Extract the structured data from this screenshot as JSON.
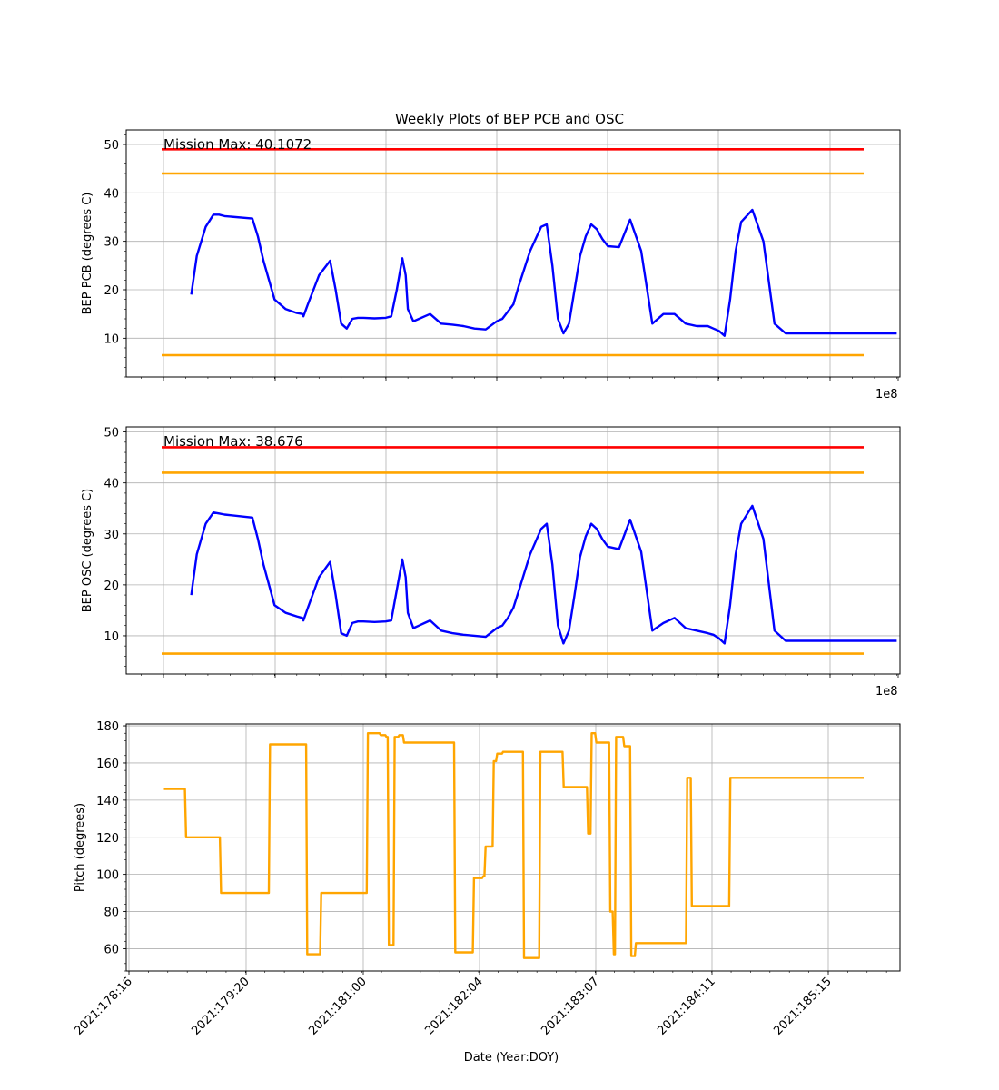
{
  "figure": {
    "title": "Weekly Plots of BEP PCB and OSC",
    "xlabel": "Date (Year:DOY)",
    "pcb_offset_label": "1e8",
    "osc_offset_label": "1e8"
  },
  "chart_data": [
    {
      "type": "line",
      "ylabel": "BEP PCB (degrees C)",
      "ylim": [
        2,
        53
      ],
      "yticks": [
        "10",
        "20",
        "30",
        "40",
        "50"
      ],
      "xlim": [
        0,
        6.95
      ],
      "grid": true,
      "annotation": "Mission Max: 40.1072",
      "limits": [
        {
          "value": 49,
          "color": "#ff0000",
          "name": "red upper limit"
        },
        {
          "value": 44,
          "color": "#ffa500",
          "name": "yellow upper limit"
        },
        {
          "value": 6.5,
          "color": "#ffa500",
          "name": "yellow lower limit"
        }
      ],
      "series": [
        {
          "color": "#0000ff",
          "x": [
            0.25,
            0.3,
            0.38,
            0.45,
            0.5,
            0.55,
            0.8,
            0.85,
            0.9,
            1.0,
            1.1,
            1.2,
            1.25,
            1.26,
            1.3,
            1.4,
            1.5,
            1.55,
            1.6,
            1.65,
            1.7,
            1.75,
            1.8,
            1.9,
            2.0,
            2.05,
            2.1,
            2.15,
            2.18,
            2.2,
            2.25,
            2.3,
            2.35,
            2.4,
            2.5,
            2.6,
            2.7,
            2.8,
            2.9,
            3.0,
            3.05,
            3.1,
            3.15,
            3.2,
            3.3,
            3.4,
            3.45,
            3.5,
            3.55,
            3.6,
            3.65,
            3.7,
            3.75,
            3.8,
            3.85,
            3.9,
            3.95,
            4.0,
            4.1,
            4.2,
            4.3,
            4.4,
            4.5,
            4.6,
            4.7,
            4.8,
            4.9,
            4.95,
            5.0,
            5.05,
            5.1,
            5.15,
            5.2,
            5.3,
            5.4,
            5.5,
            5.6,
            5.7,
            5.75,
            5.8,
            5.9,
            6.0,
            6.1,
            6.2,
            6.25,
            6.3,
            6.35,
            6.4,
            6.45,
            6.5,
            6.55,
            6.6
          ],
          "y": [
            19,
            27,
            33,
            35.5,
            35.5,
            35.2,
            34.7,
            31,
            26,
            18,
            16,
            15.2,
            15,
            14.5,
            17,
            23,
            26,
            20,
            13,
            12,
            14,
            14.2,
            14.2,
            14.1,
            14.2,
            14.5,
            20,
            26.5,
            23,
            16,
            13.5,
            14,
            14.5,
            15,
            13,
            12.8,
            12.5,
            12,
            11.8,
            13.5,
            14,
            15.5,
            17,
            21,
            28,
            33,
            33.5,
            25,
            14,
            11,
            13,
            20,
            27,
            31,
            33.5,
            32.5,
            30.5,
            29,
            28.8,
            34.5,
            28,
            13,
            15,
            15,
            13,
            12.5,
            12.5,
            12,
            11.5,
            10.5,
            18,
            28,
            34,
            36.5,
            30,
            13,
            11,
            11,
            11,
            11,
            11,
            11,
            11,
            11,
            11,
            11,
            11,
            11,
            11,
            11,
            11,
            11
          ]
        }
      ]
    },
    {
      "type": "line",
      "ylabel": "BEP OSC (degrees C)",
      "ylim": [
        2.5,
        51
      ],
      "yticks": [
        "10",
        "20",
        "30",
        "40",
        "50"
      ],
      "xlim": [
        0,
        6.95
      ],
      "grid": true,
      "annotation": "Mission Max: 38.676",
      "limits": [
        {
          "value": 47,
          "color": "#ff0000",
          "name": "red upper limit"
        },
        {
          "value": 42,
          "color": "#ffa500",
          "name": "yellow upper limit"
        },
        {
          "value": 6.5,
          "color": "#ffa500",
          "name": "yellow lower limit"
        }
      ],
      "series": [
        {
          "color": "#0000ff",
          "x": [
            0.25,
            0.3,
            0.38,
            0.45,
            0.5,
            0.55,
            0.8,
            0.85,
            0.9,
            1.0,
            1.1,
            1.2,
            1.25,
            1.26,
            1.3,
            1.4,
            1.5,
            1.55,
            1.6,
            1.65,
            1.7,
            1.75,
            1.8,
            1.9,
            2.0,
            2.05,
            2.1,
            2.15,
            2.18,
            2.2,
            2.25,
            2.3,
            2.35,
            2.4,
            2.5,
            2.6,
            2.7,
            2.8,
            2.9,
            3.0,
            3.05,
            3.1,
            3.15,
            3.2,
            3.3,
            3.4,
            3.45,
            3.5,
            3.55,
            3.6,
            3.65,
            3.7,
            3.75,
            3.8,
            3.85,
            3.9,
            3.95,
            4.0,
            4.1,
            4.2,
            4.3,
            4.4,
            4.5,
            4.6,
            4.7,
            4.8,
            4.9,
            4.95,
            5.0,
            5.05,
            5.1,
            5.15,
            5.2,
            5.3,
            5.4,
            5.5,
            5.6,
            5.7,
            5.75,
            5.8,
            5.9,
            6.0,
            6.1,
            6.2,
            6.25,
            6.3,
            6.35,
            6.4,
            6.45,
            6.5,
            6.55,
            6.6
          ],
          "y": [
            18,
            26,
            32,
            34.2,
            34,
            33.8,
            33.2,
            29,
            24,
            16,
            14.5,
            13.8,
            13.5,
            13,
            15.5,
            21.5,
            24.5,
            18,
            10.5,
            10,
            12.5,
            12.8,
            12.8,
            12.7,
            12.8,
            13,
            19,
            25,
            21.5,
            14.5,
            11.5,
            12,
            12.5,
            13,
            11,
            10.5,
            10.2,
            10,
            9.8,
            11.5,
            12,
            13.5,
            15.5,
            19,
            26,
            31,
            32,
            24,
            12,
            8.5,
            11,
            18,
            25.5,
            29.5,
            32,
            31,
            29,
            27.5,
            27,
            32.8,
            26.5,
            11,
            12.5,
            13.5,
            11.5,
            11,
            10.5,
            10.2,
            9.5,
            8.5,
            16,
            26,
            32,
            35.5,
            29,
            11,
            9,
            9,
            9,
            9,
            9,
            9,
            9,
            9,
            9,
            9,
            9,
            9,
            9,
            9,
            9,
            9
          ]
        }
      ]
    },
    {
      "type": "line",
      "ylabel": "Pitch (degrees)",
      "ylim": [
        48,
        181
      ],
      "yticks": [
        "60",
        "80",
        "100",
        "120",
        "140",
        "160",
        "180"
      ],
      "x_range": [
        -0.02,
        6.95
      ],
      "xticks": [
        "2021:178:16",
        "2021:179:20",
        "2021:181:00",
        "2021:182:04",
        "2021:183:07",
        "2021:184:11",
        "2021:185:15"
      ],
      "grid": true,
      "series": [
        {
          "color": "#ffa500",
          "x": [
            0.3,
            0.48,
            0.49,
            0.78,
            0.79,
            1.2,
            1.21,
            1.52,
            1.53,
            1.64,
            1.65,
            2.04,
            2.05,
            2.15,
            2.16,
            2.2,
            2.21,
            2.22,
            2.23,
            2.27,
            2.28,
            2.31,
            2.32,
            2.35,
            2.36,
            2.79,
            2.8,
            2.95,
            2.96,
            3.03,
            3.04,
            3.05,
            3.06,
            3.12,
            3.13,
            3.15,
            3.16,
            3.2,
            3.21,
            3.38,
            3.39,
            3.52,
            3.53,
            3.72,
            3.73,
            3.93,
            3.94,
            3.96,
            3.97,
            4.0,
            4.01,
            4.12,
            4.13,
            4.15,
            4.16,
            4.17,
            4.18,
            4.24,
            4.25,
            4.3,
            4.31,
            4.34,
            4.35,
            4.78,
            4.79,
            4.82,
            4.83,
            5.15,
            5.16,
            5.46,
            5.47,
            5.76,
            5.77,
            6.06
          ],
          "y": [
            146,
            146,
            120,
            120,
            90,
            90,
            170,
            170,
            57,
            57,
            90,
            90,
            176,
            176,
            175,
            175,
            174,
            174,
            62,
            62,
            174,
            174,
            175,
            175,
            171,
            171,
            58,
            58,
            98,
            98,
            99,
            99,
            115,
            115,
            161,
            161,
            165,
            165,
            166,
            166,
            55,
            55,
            166,
            166,
            147,
            147,
            122,
            122,
            176,
            176,
            171,
            171,
            80,
            80,
            57,
            57,
            174,
            174,
            169,
            169,
            56,
            56,
            63,
            63,
            152,
            152,
            83,
            83,
            152,
            152,
            152,
            152,
            152,
            152
          ]
        }
      ]
    }
  ]
}
